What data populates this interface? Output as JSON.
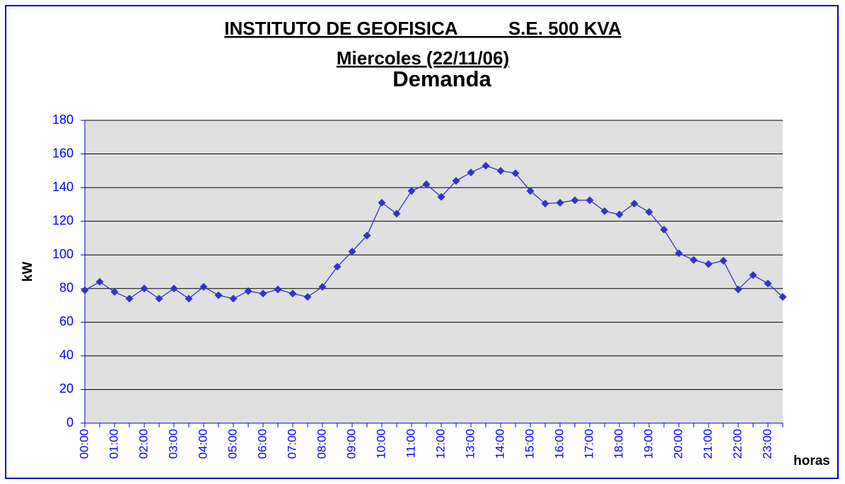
{
  "chart_data": {
    "type": "line",
    "title": "INSTITUTO DE GEOFISICA          S.E. 500 KVA",
    "subtitle": "Miercoles (22/11/06)",
    "chart_title": "Demanda",
    "y_label": "kW",
    "x_label": "horas",
    "categories": [
      "00:00",
      null,
      "01:00",
      null,
      "02:00",
      null,
      "03:00",
      null,
      "04:00",
      null,
      "05:00",
      null,
      "06:00",
      null,
      "07:00",
      null,
      "08:00",
      null,
      "09:00",
      null,
      "10:00",
      null,
      "11:00",
      null,
      "12:00",
      null,
      "13:00",
      null,
      "14:00",
      null,
      "15:00",
      null,
      "16:00",
      null,
      "17:00",
      null,
      "18:00",
      null,
      "19:00",
      null,
      "20:00",
      null,
      "21:00",
      null,
      "22:00",
      null,
      "23:00",
      null
    ],
    "series": [
      {
        "name": "Demanda",
        "color": "#3333cc",
        "values": [
          79,
          84,
          78,
          74,
          80,
          74,
          80,
          74,
          81,
          76,
          74,
          78.5,
          77,
          79.5,
          77,
          75,
          81,
          93,
          102,
          111.5,
          131,
          124.5,
          138,
          142,
          134.5,
          144,
          149,
          153,
          150,
          148.5,
          138,
          130.5,
          131,
          132.5,
          132.5,
          126,
          124,
          130.5,
          125.5,
          115,
          101,
          97,
          94.5,
          96.5,
          79.5,
          88,
          83,
          75
        ]
      }
    ],
    "ylim": [
      0,
      180
    ],
    "yticks": [
      0,
      20,
      40,
      60,
      80,
      100,
      120,
      140,
      160,
      180
    ],
    "grid": true
  }
}
